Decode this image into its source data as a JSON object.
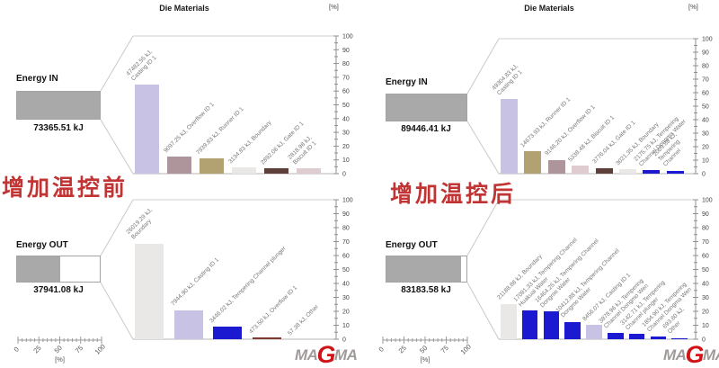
{
  "captions": {
    "before": "增加温控前",
    "after": "增加温控后"
  },
  "logo": {
    "ma1": "MA",
    "g": "G",
    "ma2": "MA"
  },
  "colors": {
    "caption_red": "#c23434",
    "logo_gray": "#a09a9a",
    "logo_red": "#d01317",
    "energy_gray": "#a9a9a9"
  },
  "chart_data": {
    "type": "bar",
    "unit": "kJ",
    "legend_position": "none",
    "grid": false,
    "palette": {
      "lavender": "#c8c2e4",
      "mauve": "#ae959b",
      "tan": "#b2a171",
      "lightgray": "#e9e8e7",
      "brown": "#5e3f39",
      "pink": "#dfccd1",
      "blue": "#1b1ad1",
      "darkred": "#7c3a32"
    },
    "axis": {
      "min": 0,
      "max": 100,
      "tick_labels": [
        "0",
        "10",
        "20",
        "30",
        "40",
        "50",
        "60",
        "70",
        "80",
        "90",
        "100"
      ]
    },
    "panels": [
      {
        "id": "in_before",
        "group": "before",
        "title": "Die Materials",
        "axis_unit": "[%]",
        "energy": {
          "label": "Energy IN",
          "value_text": "73365.51 kJ",
          "total_kJ": 73365.51,
          "fill_percent": 100
        },
        "bars": [
          {
            "kJ": 47482.55,
            "color": "lavender",
            "lines": [
              "47482.55 kJ,",
              "Casting ID 1"
            ]
          },
          {
            "kJ": 9097.25,
            "color": "mauve",
            "lines": [
              "9097.25 kJ, Overflow ID 1"
            ]
          },
          {
            "kJ": 7939.83,
            "color": "tan",
            "lines": [
              "7939.83 kJ, Runner ID 1"
            ]
          },
          {
            "kJ": 3134.83,
            "color": "lightgray",
            "lines": [
              "3134.83 kJ, Boundary"
            ]
          },
          {
            "kJ": 2892.06,
            "color": "brown",
            "lines": [
              "2892.06 kJ, Gate ID 1"
            ]
          },
          {
            "kJ": 2818.98,
            "color": "pink",
            "lines": [
              "2818.98 kJ,",
              "Biscuit ID 1"
            ]
          }
        ]
      },
      {
        "id": "out_before",
        "group": "before",
        "energy": {
          "label": "Energy OUT",
          "value_text": "37941.08 kJ",
          "total_kJ": 37941.08,
          "fill_percent": 52
        },
        "ruler": {
          "labels": [
            "0",
            "25",
            "50",
            "75",
            "100"
          ],
          "unit": "[%]"
        },
        "bars": [
          {
            "kJ": 26019.29,
            "color": "lightgray",
            "lines": [
              "26019.29 kJ,",
              "Boundary"
            ]
          },
          {
            "kJ": 7944.9,
            "color": "lavender",
            "lines": [
              "7944.90 kJ, Casting ID 1"
            ]
          },
          {
            "kJ": 3446.02,
            "color": "blue",
            "lines": [
              "3446.02 kJ, Tempering Channel plunger"
            ]
          },
          {
            "kJ": 473.5,
            "color": "darkred",
            "lines": [
              "473.50 kJ, Overflow ID 1"
            ]
          },
          {
            "kJ": 57.38,
            "color": "lightgray",
            "lines": [
              "57.38 kJ, Other"
            ]
          }
        ]
      },
      {
        "id": "in_after",
        "group": "after",
        "title": "Die Materials",
        "axis_unit": "[%]",
        "energy": {
          "label": "Energy IN",
          "value_text": "89446.41 kJ",
          "total_kJ": 89446.41,
          "fill_percent": 100
        },
        "bars": [
          {
            "kJ": 49304.83,
            "color": "lavender",
            "lines": [
              "49304.83 kJ,",
              "Casting ID 1"
            ]
          },
          {
            "kJ": 14673.93,
            "color": "tan",
            "lines": [
              "14673.93 kJ, Runner ID 1"
            ]
          },
          {
            "kJ": 9146.2,
            "color": "mauve",
            "lines": [
              "9146.20 kJ, Overflow ID 1"
            ]
          },
          {
            "kJ": 5338.48,
            "color": "pink",
            "lines": [
              "5338.48 kJ, Biscuit ID 1"
            ]
          },
          {
            "kJ": 3776.04,
            "color": "brown",
            "lines": [
              "3776.04 kJ, Gate ID 1"
            ]
          },
          {
            "kJ": 3021.35,
            "color": "lightgray",
            "lines": [
              "3021.35 kJ, Boundary"
            ]
          },
          {
            "kJ": 2175.75,
            "color": "blue",
            "lines": [
              "2175.75 kJ, Tempering",
              "Channel Dongma Water"
            ]
          },
          {
            "kJ": 2009.83,
            "color": "blue",
            "lines": [
              "2009.83 kJ,",
              "Tempering",
              "Channel"
            ]
          }
        ]
      },
      {
        "id": "out_after",
        "group": "after",
        "energy": {
          "label": "Energy OUT",
          "value_text": "83183.58 kJ",
          "total_kJ": 83183.58,
          "fill_percent": 93
        },
        "ruler": {
          "labels": [
            "0",
            "25",
            "50",
            "75",
            "100"
          ],
          "unit": "[%]"
        },
        "bars": [
          {
            "kJ": 21188.88,
            "color": "lightgray",
            "lines": [
              "21188.88 kJ, Boundary"
            ]
          },
          {
            "kJ": 17091.33,
            "color": "blue",
            "lines": [
              "17091.33 kJ, Tempering Channel",
              "Huakuai Water"
            ]
          },
          {
            "kJ": 16464.25,
            "color": "blue",
            "lines": [
              "16464.25 kJ, Tempering Channel",
              "Dongmo Water"
            ]
          },
          {
            "kJ": 10412.88,
            "color": "blue",
            "lines": [
              "10412.88 kJ, Tempering Channel",
              "Dongmo Water"
            ]
          },
          {
            "kJ": 8456.07,
            "color": "lavender",
            "lines": [
              "8456.07 kJ, Casting ID 1"
            ]
          },
          {
            "kJ": 3878.96,
            "color": "blue",
            "lines": [
              "3878.96 kJ, Tempering",
              "Channel Dongmo Wen"
            ]
          },
          {
            "kJ": 3142.71,
            "color": "blue",
            "lines": [
              "3142.71 kJ, Tempering",
              "Channel plunger"
            ]
          },
          {
            "kJ": 1854.9,
            "color": "blue",
            "lines": [
              "1854.90 kJ, Tempering",
              "Channel Dongma Wen"
            ]
          },
          {
            "kJ": 693.6,
            "color": "blue",
            "lines": [
              "693.60 kJ,",
              "Other"
            ]
          }
        ]
      }
    ]
  }
}
